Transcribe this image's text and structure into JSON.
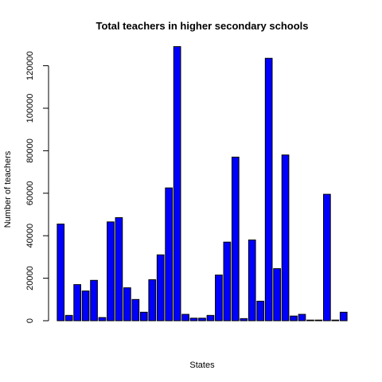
{
  "chart_data": {
    "type": "bar",
    "title": "Total teachers in higher secondary schools",
    "xlabel": "States",
    "ylabel": "Number of teachers",
    "ylim": [
      0,
      130000
    ],
    "y_ticks": [
      0,
      20000,
      40000,
      60000,
      80000,
      100000,
      120000
    ],
    "y_tick_labels": [
      "0",
      "20000",
      "40000",
      "60000",
      "80000",
      "100000",
      "120000"
    ],
    "bar_color": "#0000ff",
    "grid": false,
    "values": [
      45500,
      2500,
      17000,
      14000,
      19000,
      1500,
      46500,
      48500,
      15500,
      10000,
      4000,
      19300,
      31000,
      62500,
      129000,
      3000,
      1200,
      1200,
      2500,
      21500,
      37000,
      77000,
      1000,
      38000,
      9200,
      123500,
      24500,
      78000,
      2200,
      3000,
      300,
      300,
      59500,
      300,
      4000
    ]
  }
}
